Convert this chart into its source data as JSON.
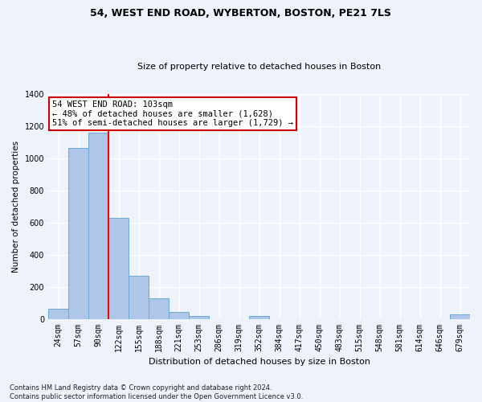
{
  "title1": "54, WEST END ROAD, WYBERTON, BOSTON, PE21 7LS",
  "title2": "Size of property relative to detached houses in Boston",
  "xlabel": "Distribution of detached houses by size in Boston",
  "ylabel": "Number of detached properties",
  "footnote": "Contains HM Land Registry data © Crown copyright and database right 2024.\nContains public sector information licensed under the Open Government Licence v3.0.",
  "categories": [
    "24sqm",
    "57sqm",
    "90sqm",
    "122sqm",
    "155sqm",
    "188sqm",
    "221sqm",
    "253sqm",
    "286sqm",
    "319sqm",
    "352sqm",
    "384sqm",
    "417sqm",
    "450sqm",
    "483sqm",
    "515sqm",
    "548sqm",
    "581sqm",
    "614sqm",
    "646sqm",
    "679sqm"
  ],
  "values": [
    65,
    1065,
    1160,
    630,
    270,
    130,
    45,
    20,
    0,
    0,
    20,
    0,
    0,
    0,
    0,
    0,
    0,
    0,
    0,
    0,
    30
  ],
  "bar_color": "#aec6e8",
  "bar_edge_color": "#6aaad4",
  "red_line_x": 2.5,
  "annotation_title": "54 WEST END ROAD: 103sqm",
  "annotation_line1": "← 48% of detached houses are smaller (1,628)",
  "annotation_line2": "51% of semi-detached houses are larger (1,729) →",
  "ylim": [
    0,
    1400
  ],
  "yticks": [
    0,
    200,
    400,
    600,
    800,
    1000,
    1200,
    1400
  ],
  "background_color": "#eef2fb",
  "grid_color": "#ffffff",
  "annotation_box_facecolor": "#ffffff",
  "annotation_box_edgecolor": "#cc0000",
  "title1_fontsize": 9,
  "title2_fontsize": 8,
  "xlabel_fontsize": 8,
  "ylabel_fontsize": 7.5,
  "tick_fontsize": 7,
  "annotation_fontsize": 7.5,
  "footnote_fontsize": 6
}
